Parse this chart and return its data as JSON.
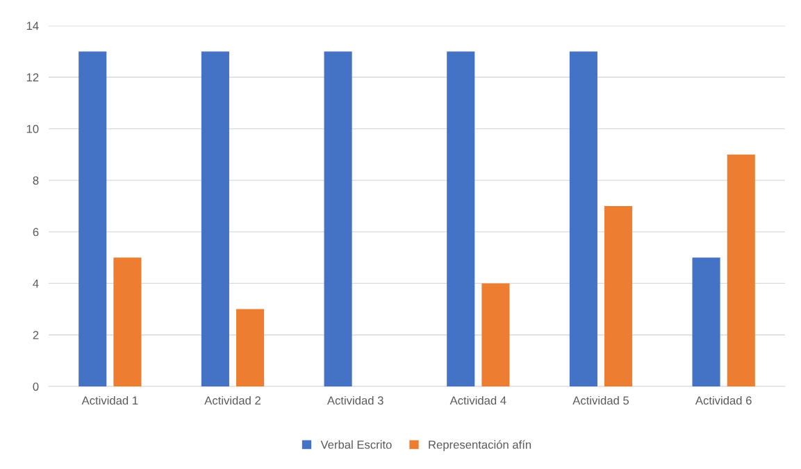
{
  "chart_data": {
    "type": "bar",
    "categories": [
      "Actividad 1",
      "Actividad 2",
      "Actividad 3",
      "Actividad 4",
      "Actividad 5",
      "Actividad 6"
    ],
    "series": [
      {
        "name": "Verbal Escrito",
        "color": "#4472c4",
        "values": [
          13,
          13,
          13,
          13,
          13,
          5
        ]
      },
      {
        "name": "Representación afín",
        "color": "#ed7d31",
        "values": [
          5,
          3,
          0,
          4,
          7,
          9
        ]
      }
    ],
    "ylim": [
      0,
      14
    ],
    "yticks": [
      0,
      2,
      4,
      6,
      8,
      10,
      12,
      14
    ],
    "grid": "y",
    "legend": "bottom"
  }
}
